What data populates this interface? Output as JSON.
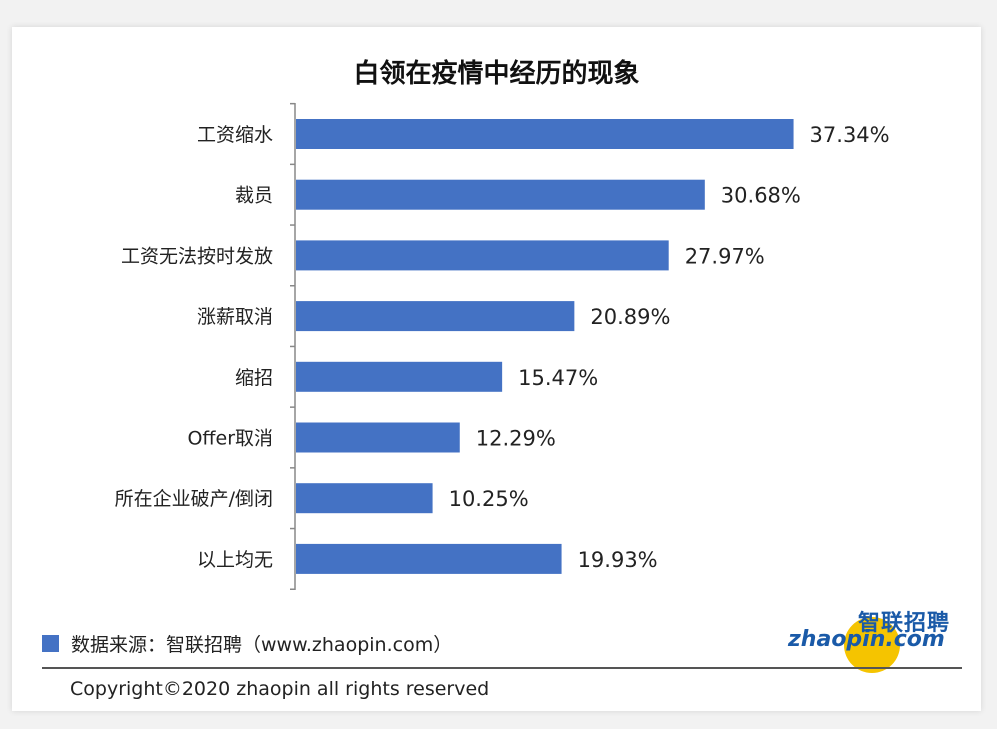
{
  "chart_data": {
    "type": "bar",
    "orientation": "horizontal",
    "title": "白领在疫情中经历的现象",
    "categories": [
      "工资缩水",
      "裁员",
      "工资无法按时发放",
      "涨薪取消",
      "缩招",
      "Offer取消",
      "所在企业破产/倒闭",
      "以上均无"
    ],
    "values": [
      37.34,
      30.68,
      27.97,
      20.89,
      15.47,
      12.29,
      10.25,
      19.93
    ],
    "value_labels": [
      "37.34%",
      "30.68%",
      "27.97%",
      "20.89%",
      "15.47%",
      "12.29%",
      "10.25%",
      "19.93%"
    ],
    "xlim": [
      0,
      40
    ],
    "grid": false,
    "legend": "bottom-left",
    "bar_color": "#4472C4"
  },
  "footer": {
    "source": "数据来源：智联招聘（www.zhaopin.com）",
    "copyright": "Copyright©2020 zhaopin all rights reserved"
  },
  "logo": {
    "cn": "智联招聘",
    "en": "zhaopin.com"
  }
}
